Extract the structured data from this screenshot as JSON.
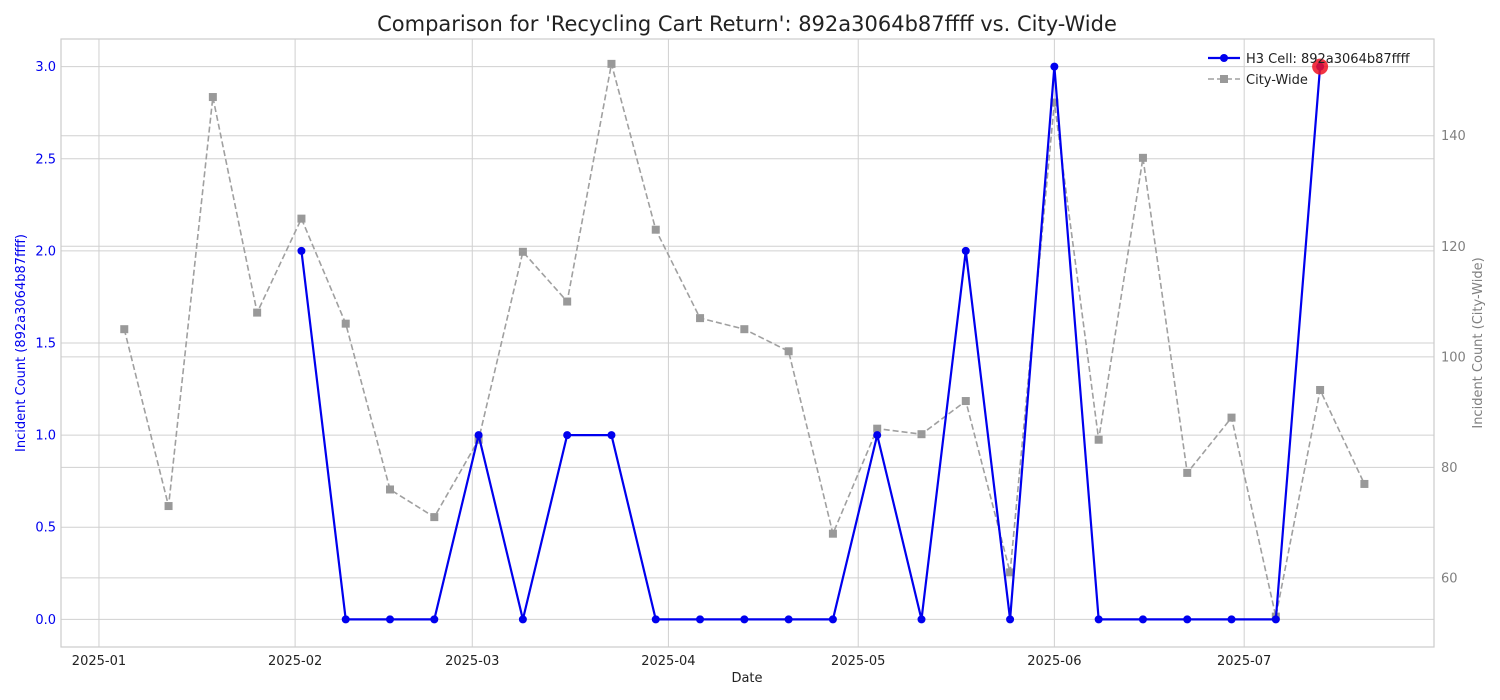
{
  "chart_data": {
    "type": "line",
    "title": "Comparison for 'Recycling Cart Return': 892a3064b87ffff vs. City-Wide",
    "xlabel": "Date",
    "ylabel_left": "Incident Count (892a3064b87ffff)",
    "ylabel_right": "Incident Count (City-Wide)",
    "x_tick_labels": [
      "2025-01",
      "2025-02",
      "2025-03",
      "2025-04",
      "2025-05",
      "2025-06",
      "2025-07"
    ],
    "x_ticks": [
      "2025-01-01",
      "2025-02-01",
      "2025-03-01",
      "2025-04-01",
      "2025-05-01",
      "2025-06-01",
      "2025-07-01"
    ],
    "xlim": [
      "2024-12-26",
      "2025-07-31"
    ],
    "ylim_left": [
      -0.15,
      3.15
    ],
    "ylim_right": [
      47.5,
      157.5
    ],
    "yticks_left": [
      "0.0",
      "0.5",
      "1.0",
      "1.5",
      "2.0",
      "2.5",
      "3.0"
    ],
    "yticks_right": [
      "60",
      "80",
      "100",
      "120",
      "140"
    ],
    "grid": true,
    "legend_position": "top-right",
    "series": [
      {
        "name": "H3 Cell: 892a3064b87ffff",
        "axis": "left",
        "color": "#0000ee",
        "style": "solid",
        "marker": "circle",
        "x": [
          "2025-02-02",
          "2025-02-09",
          "2025-02-16",
          "2025-02-23",
          "2025-03-02",
          "2025-03-09",
          "2025-03-16",
          "2025-03-23",
          "2025-03-30",
          "2025-04-06",
          "2025-04-13",
          "2025-04-20",
          "2025-04-27",
          "2025-05-04",
          "2025-05-11",
          "2025-05-18",
          "2025-05-25",
          "2025-06-01",
          "2025-06-08",
          "2025-06-15",
          "2025-06-22",
          "2025-06-29",
          "2025-07-06",
          "2025-07-13"
        ],
        "values": [
          2,
          0,
          0,
          0,
          1,
          0,
          1,
          1,
          0,
          0,
          0,
          0,
          0,
          1,
          0,
          2,
          0,
          3,
          0,
          0,
          0,
          0,
          0,
          3
        ]
      },
      {
        "name": "City-Wide",
        "axis": "right",
        "color": "#a0a0a0",
        "style": "dashed",
        "marker": "square",
        "x": [
          "2025-01-05",
          "2025-01-12",
          "2025-01-19",
          "2025-01-26",
          "2025-02-02",
          "2025-02-09",
          "2025-02-16",
          "2025-02-23",
          "2025-03-02",
          "2025-03-09",
          "2025-03-16",
          "2025-03-23",
          "2025-03-30",
          "2025-04-06",
          "2025-04-13",
          "2025-04-20",
          "2025-04-27",
          "2025-05-04",
          "2025-05-11",
          "2025-05-18",
          "2025-05-25",
          "2025-06-01",
          "2025-06-08",
          "2025-06-15",
          "2025-06-22",
          "2025-06-29",
          "2025-07-06",
          "2025-07-13",
          "2025-07-20"
        ],
        "values": [
          105,
          73,
          147,
          108,
          125,
          106,
          76,
          71,
          85,
          119,
          110,
          153,
          123,
          107,
          105,
          101,
          68,
          87,
          86,
          92,
          61,
          146,
          85,
          136,
          79,
          89,
          53,
          94,
          77
        ]
      }
    ],
    "highlight": {
      "series": 0,
      "x": "2025-07-13",
      "value": 3,
      "color": "#ee1122"
    }
  }
}
